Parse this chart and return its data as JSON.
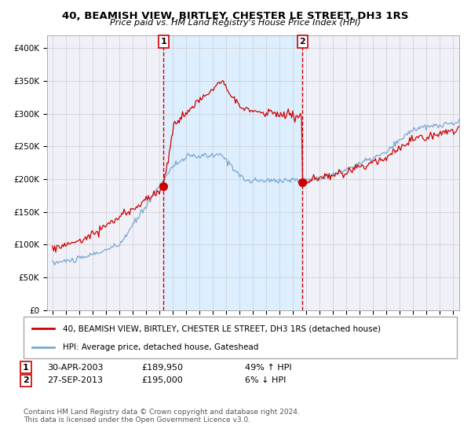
{
  "title": "40, BEAMISH VIEW, BIRTLEY, CHESTER LE STREET, DH3 1RS",
  "subtitle": "Price paid vs. HM Land Registry's House Price Index (HPI)",
  "legend_line1": "40, BEAMISH VIEW, BIRTLEY, CHESTER LE STREET, DH3 1RS (detached house)",
  "legend_line2": "HPI: Average price, detached house, Gateshead",
  "transaction1_date": "30-APR-2003",
  "transaction1_price": "£189,950",
  "transaction1_hpi": "49% ↑ HPI",
  "transaction1_year": 2003.33,
  "transaction1_value": 189950,
  "transaction2_date": "27-SEP-2013",
  "transaction2_price": "£195,000",
  "transaction2_hpi": "6% ↓ HPI",
  "transaction2_year": 2013.75,
  "transaction2_value": 195000,
  "red_line_color": "#cc0000",
  "blue_line_color": "#7ba7cc",
  "shaded_color": "#ddeeff",
  "grid_color": "#cccccc",
  "background_color": "#f0f0f8",
  "ylim": [
    0,
    420000
  ],
  "xlim_start": 1994.6,
  "xlim_end": 2025.5,
  "yticks": [
    0,
    50000,
    100000,
    150000,
    200000,
    250000,
    300000,
    350000,
    400000
  ],
  "ytick_labels": [
    "£0",
    "£50K",
    "£100K",
    "£150K",
    "£200K",
    "£250K",
    "£300K",
    "£350K",
    "£400K"
  ],
  "footer": "Contains HM Land Registry data © Crown copyright and database right 2024.\nThis data is licensed under the Open Government Licence v3.0."
}
